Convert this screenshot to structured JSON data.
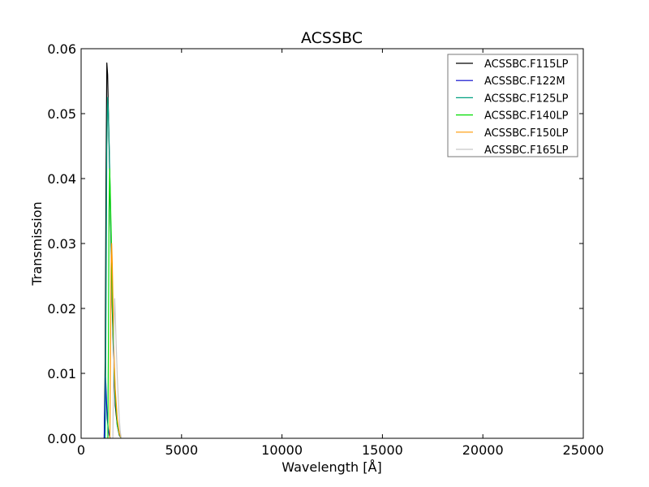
{
  "chart_data": {
    "type": "line",
    "title": "ACSSBC",
    "xlabel": "Wavelength [Å]",
    "ylabel": "Transmission",
    "xlim": [
      0,
      25000
    ],
    "ylim": [
      0,
      0.06
    ],
    "x_ticks": [
      "0",
      "5000",
      "10000",
      "15000",
      "20000",
      "25000"
    ],
    "y_ticks": [
      "0.00",
      "0.01",
      "0.02",
      "0.03",
      "0.04",
      "0.05",
      "0.06"
    ],
    "grid": false,
    "legend_position": "top-right",
    "series": [
      {
        "name": "ACSSBC.F115LP",
        "color": "#000000",
        "x": [
          1150,
          1200,
          1240,
          1280,
          1320,
          1360,
          1400,
          1450,
          1500,
          1550,
          1600,
          1650,
          1700,
          1800,
          1900,
          2000
        ],
        "y": [
          0.0,
          0.012,
          0.04,
          0.0578,
          0.056,
          0.05,
          0.044,
          0.036,
          0.028,
          0.02,
          0.014,
          0.009,
          0.005,
          0.002,
          0.0005,
          0.0
        ]
      },
      {
        "name": "ACSSBC.F122M",
        "color": "#0000cc",
        "x": [
          1150,
          1180,
          1210,
          1230,
          1260,
          1300,
          1350,
          1400,
          1450
        ],
        "y": [
          0.0,
          0.005,
          0.0095,
          0.0085,
          0.006,
          0.003,
          0.0015,
          0.0005,
          0.0
        ]
      },
      {
        "name": "ACSSBC.F125LP",
        "color": "#00a080",
        "x": [
          1200,
          1240,
          1280,
          1320,
          1360,
          1400,
          1450,
          1500,
          1550,
          1600,
          1650,
          1700,
          1800,
          1900,
          2000
        ],
        "y": [
          0.0,
          0.02,
          0.045,
          0.0525,
          0.05,
          0.045,
          0.037,
          0.029,
          0.021,
          0.015,
          0.01,
          0.006,
          0.002,
          0.0006,
          0.0
        ]
      },
      {
        "name": "ACSSBC.F140LP",
        "color": "#00dd00",
        "x": [
          1330,
          1360,
          1390,
          1420,
          1450,
          1500,
          1550,
          1600,
          1650,
          1700,
          1800,
          1900,
          2000
        ],
        "y": [
          0.0,
          0.015,
          0.035,
          0.0415,
          0.038,
          0.031,
          0.023,
          0.016,
          0.011,
          0.007,
          0.0025,
          0.0007,
          0.0
        ]
      },
      {
        "name": "ACSSBC.F150LP",
        "color": "#ff9900",
        "x": [
          1430,
          1460,
          1490,
          1520,
          1550,
          1580,
          1620,
          1660,
          1700,
          1800,
          1900,
          2000
        ],
        "y": [
          0.0,
          0.012,
          0.026,
          0.03,
          0.027,
          0.022,
          0.016,
          0.011,
          0.0075,
          0.003,
          0.0008,
          0.0
        ]
      },
      {
        "name": "ACSSBC.F165LP",
        "color": "#c8c8c8",
        "x": [
          1580,
          1610,
          1640,
          1670,
          1700,
          1750,
          1800,
          1850,
          1900,
          1950,
          2000
        ],
        "y": [
          0.0,
          0.01,
          0.018,
          0.0215,
          0.019,
          0.014,
          0.0095,
          0.006,
          0.003,
          0.001,
          0.0
        ]
      }
    ]
  }
}
